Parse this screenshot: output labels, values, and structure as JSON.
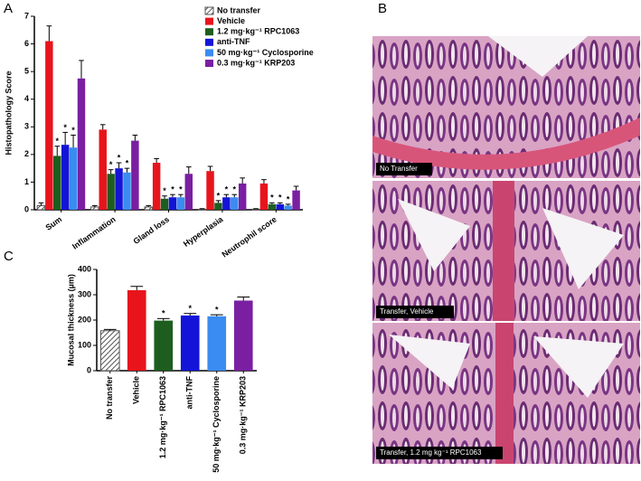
{
  "panel_labels": [
    "A",
    "B",
    "C"
  ],
  "chart_data": [
    {
      "type": "bar",
      "y_label": "Histopathology Score",
      "categories": [
        "Sum",
        "Inflammation",
        "Gland loss",
        "Hyperplasia",
        "Neutrophil score"
      ],
      "ylim": [
        0,
        7
      ],
      "yticks": [
        0,
        1,
        2,
        3,
        4,
        5,
        6,
        7
      ],
      "legend": "top-right",
      "series": [
        {
          "name": "No transfer",
          "color": "#9a9a9a",
          "hatch": true,
          "values": [
            0.15,
            0.1,
            0.1,
            0.02,
            0.02
          ],
          "errors": [
            0.1,
            0.05,
            0.05,
            0.02,
            0.02
          ]
        },
        {
          "name": "Vehicle",
          "color": "#e8141c",
          "values": [
            6.1,
            2.9,
            1.7,
            1.4,
            0.95
          ],
          "errors": [
            0.55,
            0.18,
            0.15,
            0.17,
            0.14
          ]
        },
        {
          "name": "1.2 mg·kg⁻¹ RPC1063",
          "color": "#1d5e1f",
          "values": [
            1.95,
            1.3,
            0.4,
            0.25,
            0.2
          ],
          "errors": [
            0.35,
            0.15,
            0.1,
            0.08,
            0.05
          ],
          "significance": [
            "*",
            "*",
            "*",
            "*",
            "*"
          ]
        },
        {
          "name": "anti-TNF",
          "color": "#1414d8",
          "values": [
            2.35,
            1.5,
            0.45,
            0.45,
            0.2
          ],
          "errors": [
            0.45,
            0.2,
            0.1,
            0.1,
            0.05
          ],
          "significance": [
            "*",
            "*",
            "*",
            "*",
            "*"
          ]
        },
        {
          "name": "50 mg·kg⁻¹ Cyclosporine",
          "color": "#3a8cf0",
          "values": [
            2.25,
            1.35,
            0.45,
            0.45,
            0.15
          ],
          "errors": [
            0.45,
            0.15,
            0.1,
            0.1,
            0.05
          ],
          "significance": [
            "*",
            "*",
            "*",
            "*",
            "*"
          ]
        },
        {
          "name": "0.3 mg·kg⁻¹ KRP203",
          "color": "#7a1fa2",
          "values": [
            4.75,
            2.5,
            1.3,
            0.95,
            0.7
          ],
          "errors": [
            0.65,
            0.2,
            0.25,
            0.2,
            0.15
          ]
        }
      ]
    },
    {
      "type": "bar",
      "y_label": "Mucosal thickness (µm)",
      "categories": [
        "No  transfer",
        "Vehicle",
        "1.2 mg·kg⁻¹ RPC1063",
        "anti-TNF",
        "50 mg·kg⁻¹ Cyclosporine",
        "0.3 mg·kg⁻¹ KRP203"
      ],
      "values": [
        158,
        318,
        198,
        218,
        215,
        277
      ],
      "errors": [
        5,
        15,
        8,
        8,
        6,
        14
      ],
      "colors": [
        "#9a9a9a",
        "#e8141c",
        "#1d5e1f",
        "#1414d8",
        "#3a8cf0",
        "#7a1fa2"
      ],
      "hatch": [
        true,
        false,
        false,
        false,
        false,
        false
      ],
      "significance": [
        null,
        null,
        "*",
        "*",
        "*",
        null
      ],
      "ylim": [
        0,
        400
      ],
      "yticks": [
        0,
        100,
        200,
        300,
        400
      ]
    }
  ],
  "images": [
    {
      "caption": "No Transfer"
    },
    {
      "caption": "Transfer, Vehicle"
    },
    {
      "caption": "Transfer, 1.2 mg kg⁻¹ RPC1063"
    }
  ]
}
